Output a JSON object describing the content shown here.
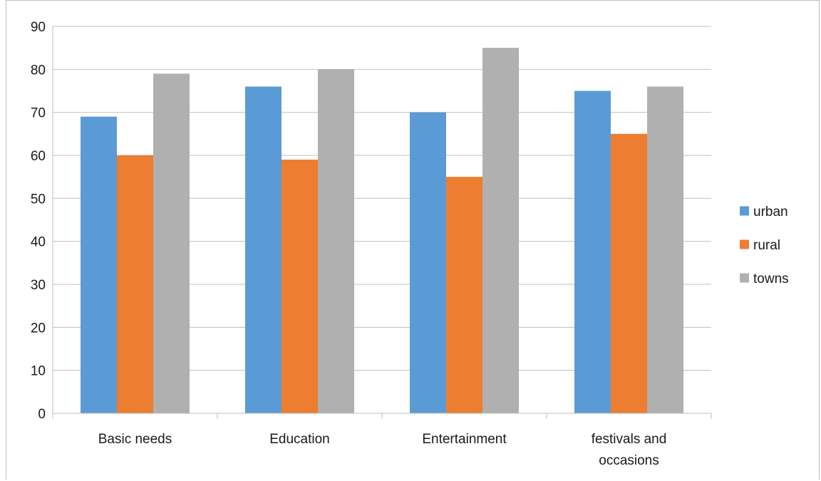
{
  "chart_data": {
    "type": "bar",
    "categories": [
      [
        "Basic needs"
      ],
      [
        "Education"
      ],
      [
        "Entertainment"
      ],
      [
        "festivals and",
        "occasions"
      ]
    ],
    "series": [
      {
        "name": "urban",
        "color": "#5b9bd5",
        "values": [
          69,
          76,
          70,
          75
        ]
      },
      {
        "name": "rural",
        "color": "#ed7d31",
        "values": [
          60,
          59,
          55,
          65
        ]
      },
      {
        "name": "towns",
        "color": "#b0b0b0",
        "values": [
          79,
          80,
          85,
          76
        ]
      }
    ],
    "ylim": [
      0,
      90
    ],
    "yticks": [
      "0",
      "10",
      "20",
      "30",
      "40",
      "50",
      "60",
      "70",
      "80",
      "90"
    ],
    "ytick_values": [
      0,
      10,
      20,
      30,
      40,
      50,
      60,
      70,
      80,
      90
    ],
    "grid": true,
    "legend_position": "right",
    "gridline_color": "#bfbfbf"
  }
}
